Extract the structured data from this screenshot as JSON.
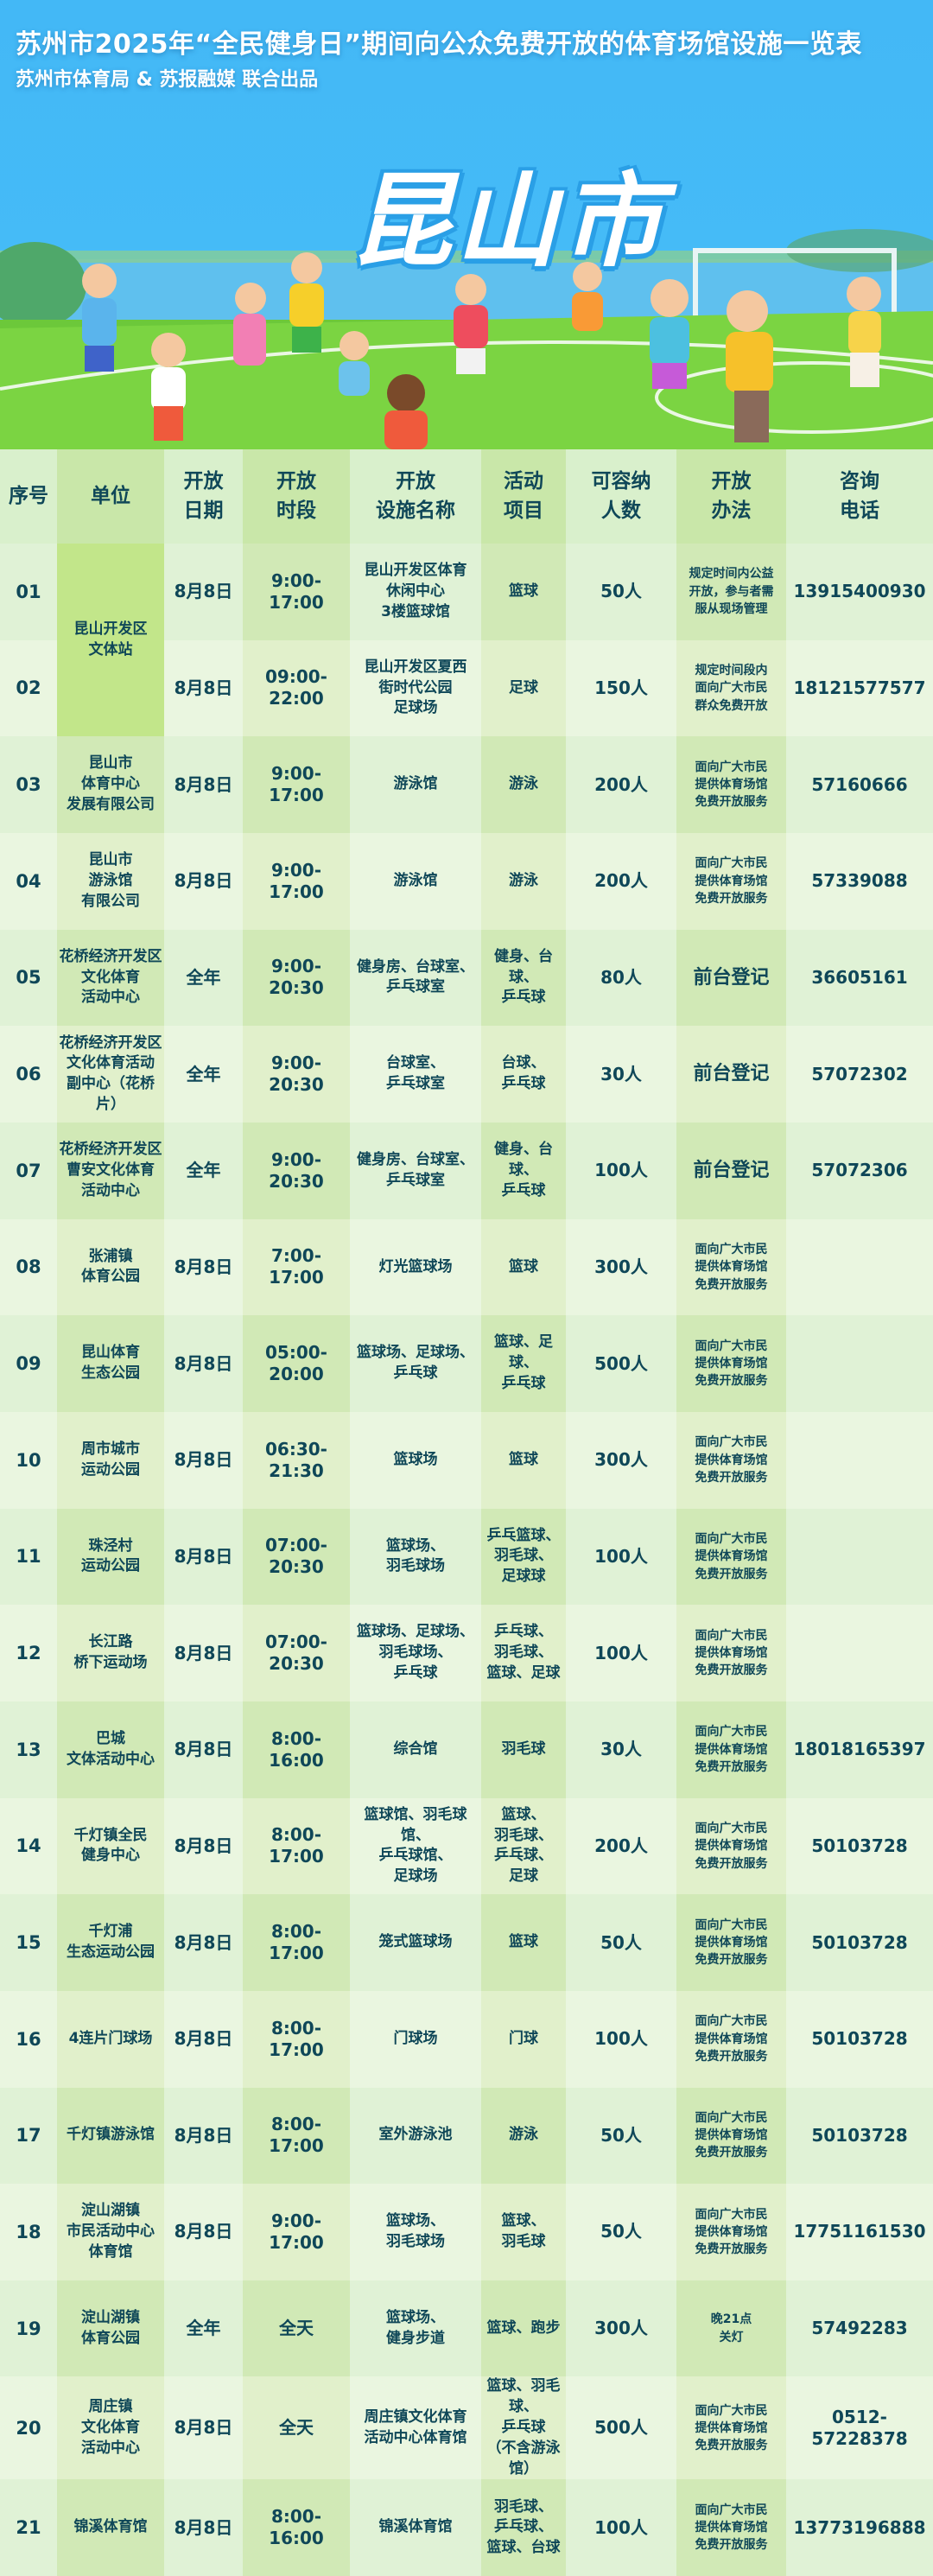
{
  "header": {
    "title": "苏州市2025年“全民健身日”期间向公众免费开放的体育场馆设施一览表",
    "subtitle": "苏州市体育局 & 苏报融媒 联合出品",
    "city": "昆山市"
  },
  "colors": {
    "banner_sky": "#43b8f6",
    "text": "#0f4758",
    "grass": "#6cc83a"
  },
  "table": {
    "columns": [
      "序号",
      "单位",
      "开放\n日期",
      "开放\n时段",
      "开放\n设施名称",
      "活动\n项目",
      "可容纳\n人数",
      "开放\n办法",
      "咨询\n电话"
    ],
    "rows": [
      {
        "no": "01",
        "unit": "昆山开发区\n文体站",
        "date": "8月8日",
        "time": "9:00-17:00",
        "facility": "昆山开发区体育\n休闲中心\n3楼篮球馆",
        "activity": "篮球",
        "capacity": "50人",
        "method": "规定时间内公益\n开放，参与者需\n服从现场管理",
        "phone": "13915400930"
      },
      {
        "no": "02",
        "unit": "",
        "date": "8月8日",
        "time": "09:00-22:00",
        "facility": "昆山开发区夏西\n街时代公园\n足球场",
        "activity": "足球",
        "capacity": "150人",
        "method": "规定时间段内\n面向广大市民\n群众免费开放",
        "phone": "18121577577"
      },
      {
        "no": "03",
        "unit": "昆山市\n体育中心\n发展有限公司",
        "date": "8月8日",
        "time": "9:00-17:00",
        "facility": "游泳馆",
        "activity": "游泳",
        "capacity": "200人",
        "method": "面向广大市民\n提供体育场馆\n免费开放服务",
        "phone": "57160666"
      },
      {
        "no": "04",
        "unit": "昆山市\n游泳馆\n有限公司",
        "date": "8月8日",
        "time": "9:00-17:00",
        "facility": "游泳馆",
        "activity": "游泳",
        "capacity": "200人",
        "method": "面向广大市民\n提供体育场馆\n免费开放服务",
        "phone": "57339088"
      },
      {
        "no": "05",
        "unit": "花桥经济开发区\n文化体育\n活动中心",
        "date": "全年",
        "time": "9:00-20:30",
        "facility": "健身房、台球室、\n乒乓球室",
        "activity": "健身、台球、\n乒乓球",
        "capacity": "80人",
        "method": "前台登记",
        "phone": "36605161"
      },
      {
        "no": "06",
        "unit": "花桥经济开发区\n文化体育活动\n副中心（花桥片）",
        "date": "全年",
        "time": "9:00-20:30",
        "facility": "台球室、\n乒乓球室",
        "activity": "台球、\n乒乓球",
        "capacity": "30人",
        "method": "前台登记",
        "phone": "57072302"
      },
      {
        "no": "07",
        "unit": "花桥经济开发区\n曹安文化体育\n活动中心",
        "date": "全年",
        "time": "9:00-20:30",
        "facility": "健身房、台球室、\n乒乓球室",
        "activity": "健身、台球、\n乒乓球",
        "capacity": "100人",
        "method": "前台登记",
        "phone": "57072306"
      },
      {
        "no": "08",
        "unit": "张浦镇\n体育公园",
        "date": "8月8日",
        "time": "7:00-17:00",
        "facility": "灯光篮球场",
        "activity": "篮球",
        "capacity": "300人",
        "method": "面向广大市民\n提供体育场馆\n免费开放服务",
        "phone": ""
      },
      {
        "no": "09",
        "unit": "昆山体育\n生态公园",
        "date": "8月8日",
        "time": "05:00-20:00",
        "facility": "篮球场、足球场、\n乒乓球",
        "activity": "篮球、足球、\n乒乓球",
        "capacity": "500人",
        "method": "面向广大市民\n提供体育场馆\n免费开放服务",
        "phone": ""
      },
      {
        "no": "10",
        "unit": "周市城市\n运动公园",
        "date": "8月8日",
        "time": "06:30-21:30",
        "facility": "篮球场",
        "activity": "篮球",
        "capacity": "300人",
        "method": "面向广大市民\n提供体育场馆\n免费开放服务",
        "phone": ""
      },
      {
        "no": "11",
        "unit": "珠泾村\n运动公园",
        "date": "8月8日",
        "time": "07:00-20:30",
        "facility": "篮球场、\n羽毛球场",
        "activity": "乒乓篮球、\n羽毛球、\n足球球",
        "capacity": "100人",
        "method": "面向广大市民\n提供体育场馆\n免费开放服务",
        "phone": ""
      },
      {
        "no": "12",
        "unit": "长江路\n桥下运动场",
        "date": "8月8日",
        "time": "07:00-20:30",
        "facility": "篮球场、足球场、\n羽毛球场、\n乒乓球",
        "activity": "乒乓球、\n羽毛球、\n篮球、足球",
        "capacity": "100人",
        "method": "面向广大市民\n提供体育场馆\n免费开放服务",
        "phone": ""
      },
      {
        "no": "13",
        "unit": "巴城\n文体活动中心",
        "date": "8月8日",
        "time": "8:00-16:00",
        "facility": "综合馆",
        "activity": "羽毛球",
        "capacity": "30人",
        "method": "面向广大市民\n提供体育场馆\n免费开放服务",
        "phone": "18018165397"
      },
      {
        "no": "14",
        "unit": "千灯镇全民\n健身中心",
        "date": "8月8日",
        "time": "8:00-17:00",
        "facility": "篮球馆、羽毛球馆、\n乒乓球馆、\n足球场",
        "activity": "篮球、\n羽毛球、\n乒乓球、\n足球",
        "capacity": "200人",
        "method": "面向广大市民\n提供体育场馆\n免费开放服务",
        "phone": "50103728"
      },
      {
        "no": "15",
        "unit": "千灯浦\n生态运动公园",
        "date": "8月8日",
        "time": "8:00-17:00",
        "facility": "笼式篮球场",
        "activity": "篮球",
        "capacity": "50人",
        "method": "面向广大市民\n提供体育场馆\n免费开放服务",
        "phone": "50103728"
      },
      {
        "no": "16",
        "unit": "4连片门球场",
        "date": "8月8日",
        "time": "8:00-17:00",
        "facility": "门球场",
        "activity": "门球",
        "capacity": "100人",
        "method": "面向广大市民\n提供体育场馆\n免费开放服务",
        "phone": "50103728"
      },
      {
        "no": "17",
        "unit": "千灯镇游泳馆",
        "date": "8月8日",
        "time": "8:00-17:00",
        "facility": "室外游泳池",
        "activity": "游泳",
        "capacity": "50人",
        "method": "面向广大市民\n提供体育场馆\n免费开放服务",
        "phone": "50103728"
      },
      {
        "no": "18",
        "unit": "淀山湖镇\n市民活动中心\n体育馆",
        "date": "8月8日",
        "time": "9:00-17:00",
        "facility": "篮球场、\n羽毛球场",
        "activity": "篮球、\n羽毛球",
        "capacity": "50人",
        "method": "面向广大市民\n提供体育场馆\n免费开放服务",
        "phone": "17751161530"
      },
      {
        "no": "19",
        "unit": "淀山湖镇\n体育公园",
        "date": "全年",
        "time": "全天",
        "facility": "篮球场、\n健身步道",
        "activity": "篮球、跑步",
        "capacity": "300人",
        "method": "晚21点\n关灯",
        "phone": "57492283"
      },
      {
        "no": "20",
        "unit": "周庄镇\n文化体育\n活动中心",
        "date": "8月8日",
        "time": "全天",
        "facility": "周庄镇文化体育\n活动中心体育馆",
        "activity": "篮球、羽毛球、\n乒乓球\n（不含游泳馆）",
        "capacity": "500人",
        "method": "面向广大市民\n提供体育场馆\n免费开放服务",
        "phone": "0512-\n57228378"
      },
      {
        "no": "21",
        "unit": "锦溪体育馆",
        "date": "8月8日",
        "time": "8:00-16:00",
        "facility": "锦溪体育馆",
        "activity": "羽毛球、\n乒乓球、\n篮球、台球",
        "capacity": "100人",
        "method": "面向广大市民\n提供体育场馆\n免费开放服务",
        "phone": "13773196888"
      }
    ]
  }
}
